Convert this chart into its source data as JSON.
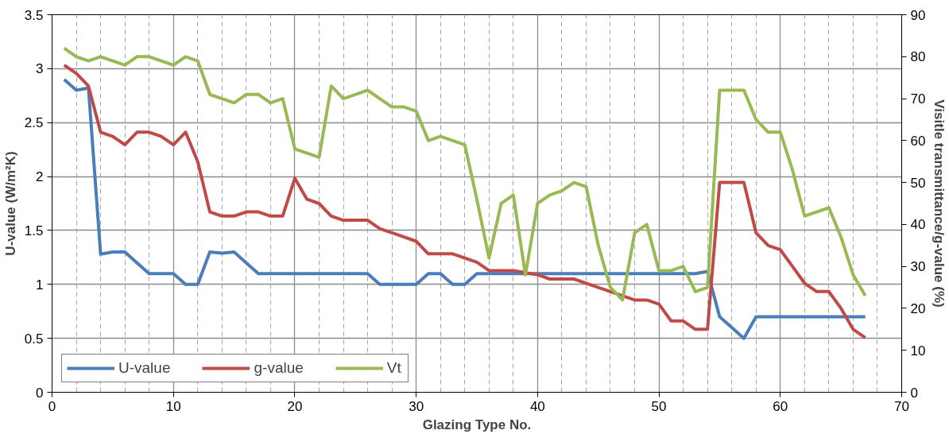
{
  "chart_data": {
    "type": "line",
    "xlabel": "Glazing Type No.",
    "ylabel": "U-value (W/m²K)",
    "y2label": "Visitle transmittance/g-value (%)",
    "x": [
      1,
      2,
      3,
      4,
      5,
      6,
      7,
      8,
      9,
      10,
      11,
      12,
      13,
      14,
      15,
      16,
      17,
      18,
      19,
      20,
      21,
      22,
      23,
      24,
      25,
      26,
      27,
      28,
      29,
      30,
      31,
      32,
      33,
      34,
      35,
      36,
      37,
      38,
      39,
      40,
      41,
      42,
      43,
      44,
      45,
      46,
      47,
      48,
      49,
      50,
      51,
      52,
      53,
      54,
      55,
      56,
      57,
      58,
      59,
      60,
      61,
      62,
      63,
      64,
      65,
      66,
      67
    ],
    "series": [
      {
        "name": "U-value",
        "color": "#4a7ebb",
        "values": [
          2.9,
          2.8,
          2.82,
          1.28,
          1.3,
          1.3,
          1.2,
          1.1,
          1.1,
          1.1,
          1.0,
          1.0,
          1.3,
          1.29,
          1.3,
          1.2,
          1.1,
          1.1,
          1.1,
          1.1,
          1.1,
          1.1,
          1.1,
          1.1,
          1.1,
          1.1,
          1.0,
          1.0,
          1.0,
          1.0,
          1.1,
          1.1,
          1.0,
          1.0,
          1.1,
          1.1,
          1.1,
          1.1,
          1.1,
          1.1,
          1.1,
          1.1,
          1.1,
          1.1,
          1.1,
          1.1,
          1.1,
          1.1,
          1.1,
          1.1,
          1.1,
          1.1,
          1.1,
          1.12,
          0.7,
          0.6,
          0.5,
          0.7,
          0.7,
          0.7,
          0.7,
          0.7,
          0.7,
          0.7,
          0.7,
          0.7,
          0.7
        ]
      },
      {
        "name": "g-value",
        "color": "#be4b48",
        "axis": "y2",
        "values": [
          78,
          76,
          73,
          62,
          61,
          59,
          62,
          62,
          61,
          59,
          62,
          55,
          43,
          42,
          42,
          43,
          43,
          42,
          42,
          51,
          46,
          45,
          42,
          41,
          41,
          41,
          39,
          38,
          37,
          36,
          33,
          33,
          33,
          32,
          31,
          29,
          29,
          29,
          28.5,
          28,
          27,
          27,
          27,
          26,
          25,
          24,
          23,
          22,
          22,
          21,
          17,
          17,
          15,
          15,
          50,
          50,
          50,
          38,
          35,
          34,
          30,
          26,
          24,
          24,
          20,
          15,
          13
        ]
      },
      {
        "name": "Vt",
        "color": "#98b954",
        "axis": "y2",
        "values": [
          82,
          80,
          79,
          80,
          79,
          78,
          80,
          80,
          79,
          78,
          80,
          79,
          71,
          70,
          69,
          71,
          71,
          69,
          70,
          58,
          57,
          56,
          73,
          70,
          71,
          72,
          70,
          68,
          68,
          67,
          60,
          61,
          60,
          59,
          46,
          32,
          45,
          47,
          28,
          45,
          47,
          48,
          50,
          49,
          35,
          25,
          22,
          38,
          40,
          29,
          29,
          30,
          24,
          25,
          72,
          72,
          72,
          65,
          62,
          62,
          53,
          42,
          43,
          44,
          37,
          28,
          23
        ]
      }
    ],
    "xlim": [
      0,
      70
    ],
    "xticks": [
      0,
      10,
      20,
      30,
      40,
      50,
      60,
      70
    ],
    "ylim": [
      0,
      3.5
    ],
    "yticks": [
      0,
      0.5,
      1,
      1.5,
      2,
      2.5,
      3,
      3.5
    ],
    "y2lim": [
      0,
      90
    ],
    "y2ticks": [
      0,
      10,
      20,
      30,
      40,
      50,
      60,
      70,
      80,
      90
    ],
    "grid": true,
    "legend": "bottom left",
    "line_style": "solid",
    "marker": "none"
  }
}
